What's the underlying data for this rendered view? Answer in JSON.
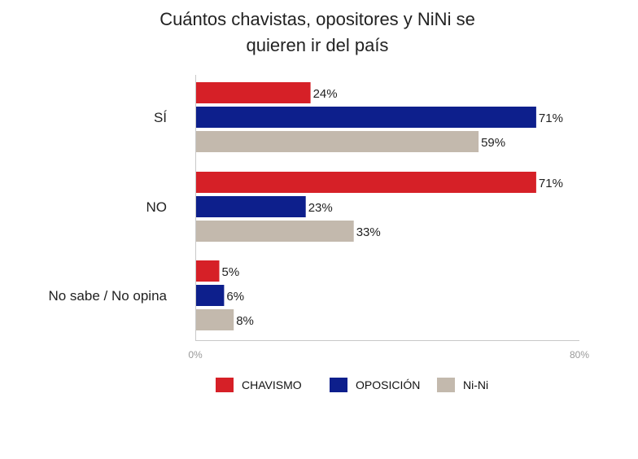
{
  "chart_data": {
    "type": "bar",
    "orientation": "horizontal",
    "title_lines": [
      "Cuántos chavistas, opositores y NiNi se",
      "quieren ir del país"
    ],
    "categories": [
      "SÍ",
      "NO",
      "No sabe / No opina"
    ],
    "series": [
      {
        "name": "CHAVISMO",
        "color": "#d62027",
        "values": [
          24,
          71,
          5
        ],
        "labels": [
          "24%",
          "71%",
          "5%"
        ]
      },
      {
        "name": "OPOSICIÓN",
        "color": "#0d1f8c",
        "values": [
          71,
          23,
          6
        ],
        "labels": [
          "71%",
          "23%",
          "6%"
        ]
      },
      {
        "name": "Ni-Ni",
        "color": "#c3b9ad",
        "values": [
          59,
          33,
          8
        ],
        "labels": [
          "59%",
          "33%",
          "8%"
        ]
      }
    ],
    "xlim": [
      0,
      80
    ],
    "x_ticks": [
      "0%",
      "80%"
    ],
    "grid": false,
    "legend_position": "bottom"
  }
}
